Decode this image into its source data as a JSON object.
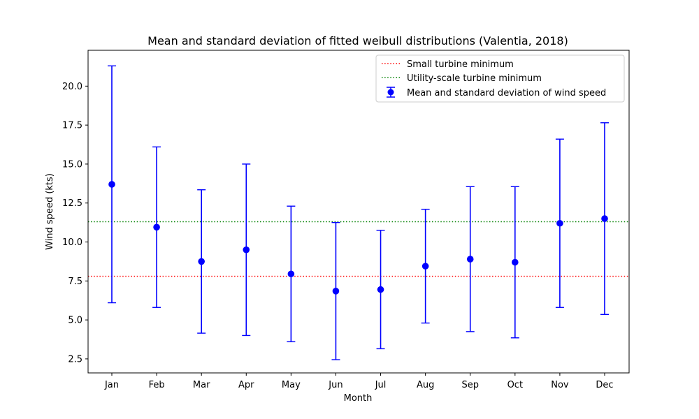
{
  "chart_data": {
    "type": "scatter",
    "title": "Mean and standard deviation of fitted weibull distributions (Valentia, 2018)",
    "xlabel": "Month",
    "ylabel": "Wind speed (kts)",
    "categories": [
      "Jan",
      "Feb",
      "Mar",
      "Apr",
      "May",
      "Jun",
      "Jul",
      "Aug",
      "Sep",
      "Oct",
      "Nov",
      "Dec"
    ],
    "ylim": [
      1.6,
      22.3
    ],
    "yticks": [
      "2.5",
      "5.0",
      "7.5",
      "10.0",
      "12.5",
      "15.0",
      "17.5",
      "20.0"
    ],
    "grid": false,
    "legend_position": "top-right",
    "series": [
      {
        "name": "Mean and standard deviation of wind speed",
        "color": "#0000ff",
        "values": [
          13.7,
          10.95,
          8.75,
          9.5,
          7.95,
          6.85,
          6.95,
          8.45,
          8.9,
          8.7,
          11.2,
          11.5
        ],
        "errors": [
          7.6,
          5.15,
          4.6,
          5.5,
          4.35,
          4.4,
          3.8,
          3.65,
          4.65,
          4.85,
          5.4,
          6.15
        ]
      }
    ],
    "reference_lines": [
      {
        "name": "Small turbine minimum",
        "y": 7.8,
        "color": "#ff0000"
      },
      {
        "name": "Utility-scale turbine minimum",
        "y": 11.3,
        "color": "#008000"
      }
    ]
  }
}
